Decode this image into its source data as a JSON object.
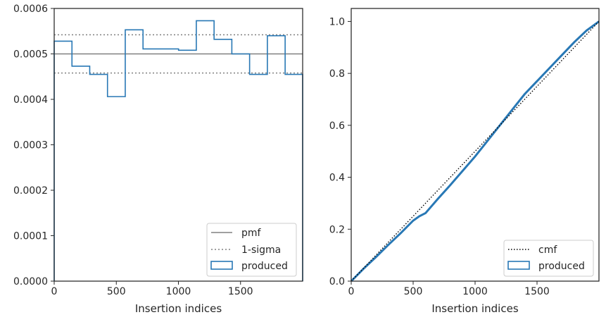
{
  "chart_data": [
    {
      "type": "histogram-step",
      "title": "",
      "xlabel": "Insertion indices",
      "ylabel": "",
      "xlim": [
        0,
        2000
      ],
      "ylim": [
        0,
        0.0006
      ],
      "xticks": [
        0,
        500,
        1000,
        1500
      ],
      "xtick_labels": [
        "0",
        "500",
        "1000",
        "1500"
      ],
      "yticks": [
        0,
        0.0001,
        0.0002,
        0.0003,
        0.0004,
        0.0005,
        0.0006
      ],
      "ytick_labels": [
        "0.0000",
        "0.0001",
        "0.0002",
        "0.0003",
        "0.0004",
        "0.0005",
        "0.0006"
      ],
      "grid": false,
      "legend_position": "lower-right",
      "bin_edges": [
        0,
        143,
        286,
        429,
        572,
        715,
        858,
        1001,
        1144,
        1287,
        1430,
        1573,
        1716,
        1859,
        2000
      ],
      "produced": [
        0.000528,
        0.000473,
        0.000455,
        0.000406,
        0.000553,
        0.000511,
        0.000511,
        0.000508,
        0.000573,
        0.000532,
        0.0005,
        0.000455,
        0.00054,
        0.000455
      ],
      "pmf": 0.0005,
      "sigma_upper": 0.000542,
      "sigma_lower": 0.000458,
      "legend": [
        {
          "label": "pmf",
          "style": "solid",
          "color": "#808080"
        },
        {
          "label": "1-sigma",
          "style": "dotted",
          "color": "#808080"
        },
        {
          "label": "produced",
          "style": "box",
          "color": "#2878b5"
        }
      ]
    },
    {
      "type": "line",
      "title": "",
      "xlabel": "Insertion indices",
      "ylabel": "",
      "xlim": [
        0,
        2000
      ],
      "ylim": [
        0,
        1.05
      ],
      "xticks": [
        0,
        500,
        1000,
        1500
      ],
      "xtick_labels": [
        "0",
        "500",
        "1000",
        "1500"
      ],
      "yticks": [
        0,
        0.2,
        0.4,
        0.6,
        0.8,
        1.0
      ],
      "ytick_labels": [
        "0.0",
        "0.2",
        "0.4",
        "0.6",
        "0.8",
        "1.0"
      ],
      "grid": false,
      "legend_position": "lower-right",
      "cmf": {
        "x": [
          0,
          2000
        ],
        "y": [
          0,
          1.0
        ]
      },
      "produced": {
        "x": [
          0,
          100,
          200,
          300,
          400,
          500,
          550,
          600,
          700,
          800,
          900,
          1000,
          1100,
          1200,
          1300,
          1400,
          1500,
          1600,
          1700,
          1800,
          1900,
          2000
        ],
        "y": [
          0,
          0.048,
          0.093,
          0.14,
          0.185,
          0.233,
          0.25,
          0.262,
          0.317,
          0.37,
          0.425,
          0.48,
          0.54,
          0.6,
          0.66,
          0.72,
          0.77,
          0.82,
          0.87,
          0.92,
          0.965,
          1.0
        ]
      },
      "legend": [
        {
          "label": "cmf",
          "style": "dotted",
          "color": "#000000"
        },
        {
          "label": "produced",
          "style": "box",
          "color": "#2878b5"
        }
      ]
    }
  ]
}
